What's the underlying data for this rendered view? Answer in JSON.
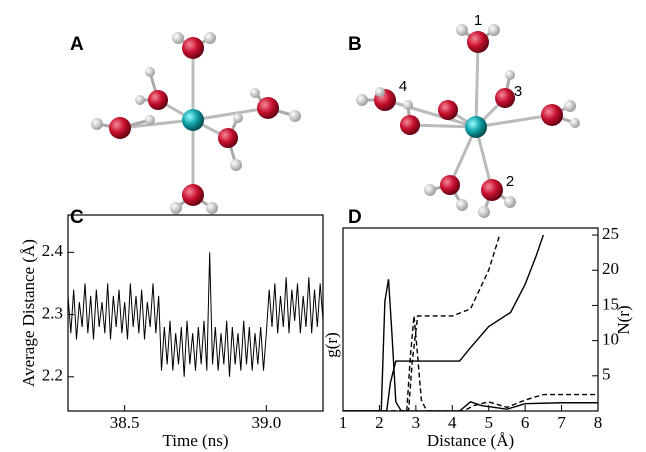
{
  "panel_labels": [
    "A",
    "B",
    "C",
    "D"
  ],
  "molecule_labels": [
    "1",
    "2",
    "3",
    "4"
  ],
  "chart_data": [
    {
      "type": "line",
      "ylabel": "Average Distance (Å)",
      "xlabel": "Time (ns)",
      "xlim": [
        38.3,
        39.2
      ],
      "ylim": [
        2.145,
        2.46
      ],
      "xticks": [
        38.5,
        {
          "value": 39.0,
          "label": "39.0"
        }
      ],
      "yticks": [
        2.2,
        2.3,
        2.4
      ],
      "x": [
        38.3,
        38.31,
        38.32,
        38.33,
        38.34,
        38.35,
        38.36,
        38.37,
        38.38,
        38.39,
        38.4,
        38.41,
        38.42,
        38.43,
        38.44,
        38.45,
        38.46,
        38.47,
        38.48,
        38.49,
        38.5,
        38.51,
        38.52,
        38.53,
        38.54,
        38.55,
        38.56,
        38.57,
        38.58,
        38.59,
        38.6,
        38.61,
        38.62,
        38.63,
        38.64,
        38.65,
        38.66,
        38.67,
        38.68,
        38.69,
        38.7,
        38.71,
        38.72,
        38.73,
        38.74,
        38.75,
        38.76,
        38.77,
        38.78,
        38.79,
        38.8,
        38.81,
        38.82,
        38.83,
        38.84,
        38.85,
        38.86,
        38.87,
        38.88,
        38.89,
        38.9,
        38.91,
        38.92,
        38.93,
        38.94,
        38.95,
        38.96,
        38.97,
        38.98,
        38.99,
        39.0,
        39.01,
        39.02,
        39.03,
        39.04,
        39.05,
        39.06,
        39.07,
        39.08,
        39.09,
        39.1,
        39.11,
        39.12,
        39.13,
        39.14,
        39.15,
        39.16,
        39.17,
        39.18,
        39.19,
        39.2
      ],
      "series": [
        {
          "color": "#000000",
          "values": [
            2.33,
            2.27,
            2.34,
            2.26,
            2.32,
            2.28,
            2.35,
            2.27,
            2.33,
            2.26,
            2.34,
            2.28,
            2.32,
            2.27,
            2.35,
            2.26,
            2.33,
            2.28,
            2.34,
            2.27,
            2.32,
            2.26,
            2.35,
            2.28,
            2.33,
            2.27,
            2.34,
            2.26,
            2.32,
            2.28,
            2.35,
            2.27,
            2.33,
            2.21,
            2.28,
            2.22,
            2.29,
            2.21,
            2.27,
            2.22,
            2.28,
            2.2,
            2.29,
            2.22,
            2.27,
            2.21,
            2.28,
            2.22,
            2.29,
            2.21,
            2.4,
            2.22,
            2.28,
            2.21,
            2.27,
            2.22,
            2.29,
            2.2,
            2.28,
            2.22,
            2.27,
            2.21,
            2.29,
            2.22,
            2.28,
            2.21,
            2.27,
            2.22,
            2.28,
            2.21,
            2.27,
            2.34,
            2.28,
            2.35,
            2.27,
            2.33,
            2.28,
            2.36,
            2.27,
            2.34,
            2.29,
            2.35,
            2.27,
            2.33,
            2.28,
            2.36,
            2.27,
            2.34,
            2.28,
            2.35,
            2.29
          ]
        }
      ]
    },
    {
      "type": "line",
      "xlabel": "Distance (Å)",
      "ylabel": "g(r)",
      "y2label": "N(r)",
      "xlim": [
        1,
        8
      ],
      "ylim": [
        0,
        10
      ],
      "y2lim": [
        0,
        26
      ],
      "xticks": [
        1,
        2,
        3,
        4,
        5,
        6,
        7,
        8
      ],
      "y2ticks": [
        5,
        10,
        15,
        20,
        25
      ],
      "series": [
        {
          "color": "#000000",
          "dash": false,
          "axis": "y",
          "x": [
            1,
            2.05,
            2.15,
            2.25,
            2.35,
            2.45,
            2.6,
            4.2,
            4.5,
            4.8,
            5.5,
            6,
            7,
            8
          ],
          "values": [
            0,
            0,
            6,
            7.2,
            4,
            0.5,
            0,
            0,
            0.5,
            0.3,
            0.1,
            0.4,
            0.45,
            0.45
          ]
        },
        {
          "color": "#000000",
          "dash": true,
          "axis": "y",
          "x": [
            1,
            2.75,
            2.85,
            2.95,
            3.05,
            3.15,
            3.3,
            4.3,
            4.6,
            5,
            5.5,
            6,
            6.5,
            7,
            8
          ],
          "values": [
            0,
            0,
            3,
            5.2,
            3,
            0.6,
            0,
            0,
            0.3,
            0.5,
            0.2,
            0.6,
            0.9,
            0.9,
            0.9
          ]
        },
        {
          "color": "#000000",
          "dash": false,
          "axis": "y2",
          "x": [
            1,
            2.2,
            2.3,
            2.45,
            4.2,
            4.5,
            5,
            5.6,
            6,
            6.3,
            6.5
          ],
          "values": [
            0,
            0,
            4,
            7.1,
            7.1,
            9,
            12,
            14,
            18,
            22,
            25
          ]
        },
        {
          "color": "#000000",
          "dash": true,
          "axis": "y2",
          "x": [
            1,
            2.8,
            2.9,
            3.05,
            4,
            4.5,
            5,
            5.3
          ],
          "values": [
            0,
            0,
            7,
            13.5,
            13.5,
            14.5,
            20,
            25
          ]
        }
      ]
    }
  ]
}
